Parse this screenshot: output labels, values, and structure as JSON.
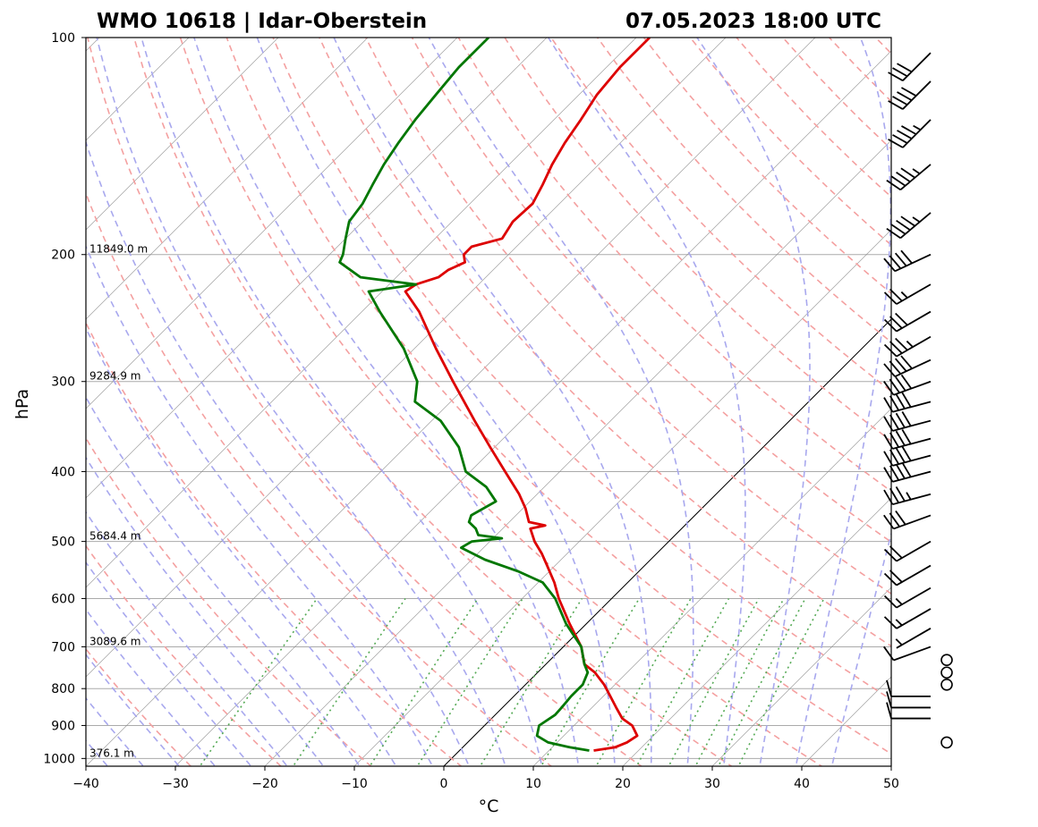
{
  "header": {
    "station": "WMO 10618 | Idar-Oberstein",
    "datetime": "07.05.2023 18:00 UTC"
  },
  "colors": {
    "temperature": "#dd0000",
    "dewpoint": "#007700",
    "dry_adiabats": "#f4a0a0",
    "moist_adiabats": "#a8a8ee",
    "mixing_ratio": "#55aa55",
    "isotherms": "#888888",
    "isobars": "#aaaaaa"
  },
  "chart_data": {
    "type": "line",
    "subtype": "skew-T log-P sounding",
    "xlabel": "°C",
    "ylabel": "hPa",
    "xlim": [
      -40,
      50
    ],
    "ylim": [
      1025,
      100
    ],
    "y_scale": "log",
    "x_ticks": [
      -40,
      -30,
      -20,
      -10,
      0,
      10,
      20,
      30,
      40,
      50
    ],
    "x_tick_labels": [
      "−40",
      "−30",
      "−20",
      "−10",
      "0",
      "10",
      "20",
      "30",
      "40",
      "50"
    ],
    "y_ticks": [
      1000,
      900,
      800,
      700,
      600,
      500,
      400,
      300,
      200,
      100
    ],
    "y_tick_labels": [
      "1000",
      "900",
      "800",
      "700",
      "600",
      "500",
      "400",
      "300",
      "200",
      "100"
    ],
    "grid": true,
    "height_labels": [
      {
        "p": 200,
        "label": "11849.0 m"
      },
      {
        "p": 300,
        "label": "9284.9 m"
      },
      {
        "p": 500,
        "label": "5684.4 m"
      },
      {
        "p": 700,
        "label": "3089.6 m"
      },
      {
        "p": 1000,
        "label": "376.1 m"
      }
    ],
    "series": [
      {
        "key": "temperature",
        "values": [
          {
            "p": 975,
            "t": 15.0
          },
          {
            "p": 965,
            "t": 17.0
          },
          {
            "p": 950,
            "t": 17.8
          },
          {
            "p": 930,
            "t": 18.2
          },
          {
            "p": 900,
            "t": 16.5
          },
          {
            "p": 880,
            "t": 14.6
          },
          {
            "p": 850,
            "t": 12.7
          },
          {
            "p": 820,
            "t": 10.8
          },
          {
            "p": 790,
            "t": 8.8
          },
          {
            "p": 760,
            "t": 6.4
          },
          {
            "p": 740,
            "t": 4.3
          },
          {
            "p": 700,
            "t": 2.0
          },
          {
            "p": 650,
            "t": -1.9
          },
          {
            "p": 600,
            "t": -5.9
          },
          {
            "p": 570,
            "t": -8.2
          },
          {
            "p": 540,
            "t": -10.9
          },
          {
            "p": 520,
            "t": -12.8
          },
          {
            "p": 500,
            "t": -15.0
          },
          {
            "p": 480,
            "t": -16.9
          },
          {
            "p": 475,
            "t": -15.6
          },
          {
            "p": 470,
            "t": -17.8
          },
          {
            "p": 450,
            "t": -19.7
          },
          {
            "p": 430,
            "t": -22.0
          },
          {
            "p": 400,
            "t": -26.1
          },
          {
            "p": 370,
            "t": -30.5
          },
          {
            "p": 340,
            "t": -35.2
          },
          {
            "p": 300,
            "t": -42.0
          },
          {
            "p": 270,
            "t": -47.6
          },
          {
            "p": 240,
            "t": -53.6
          },
          {
            "p": 225,
            "t": -57.4
          },
          {
            "p": 220,
            "t": -57.0
          },
          {
            "p": 215,
            "t": -55.3
          },
          {
            "p": 210,
            "t": -55.0
          },
          {
            "p": 205,
            "t": -54.0
          },
          {
            "p": 200,
            "t": -55.0
          },
          {
            "p": 195,
            "t": -55.0
          },
          {
            "p": 190,
            "t": -52.5
          },
          {
            "p": 180,
            "t": -53.2
          },
          {
            "p": 170,
            "t": -53.0
          },
          {
            "p": 160,
            "t": -54.0
          },
          {
            "p": 150,
            "t": -55.2
          },
          {
            "p": 140,
            "t": -56.2
          },
          {
            "p": 130,
            "t": -57.0
          },
          {
            "p": 120,
            "t": -58.0
          },
          {
            "p": 110,
            "t": -58.5
          },
          {
            "p": 100,
            "t": -58.5
          }
        ]
      },
      {
        "key": "dewpoint",
        "values": [
          {
            "p": 975,
            "t": 14.5
          },
          {
            "p": 965,
            "t": 12.0
          },
          {
            "p": 950,
            "t": 9.0
          },
          {
            "p": 930,
            "t": 7.0
          },
          {
            "p": 900,
            "t": 6.1
          },
          {
            "p": 870,
            "t": 6.7
          },
          {
            "p": 850,
            "t": 6.6
          },
          {
            "p": 820,
            "t": 6.4
          },
          {
            "p": 790,
            "t": 6.4
          },
          {
            "p": 760,
            "t": 5.6
          },
          {
            "p": 740,
            "t": 4.3
          },
          {
            "p": 700,
            "t": 2.0
          },
          {
            "p": 650,
            "t": -2.3
          },
          {
            "p": 600,
            "t": -6.3
          },
          {
            "p": 570,
            "t": -9.5
          },
          {
            "p": 550,
            "t": -13.5
          },
          {
            "p": 530,
            "t": -18.5
          },
          {
            "p": 510,
            "t": -22.5
          },
          {
            "p": 500,
            "t": -22.0
          },
          {
            "p": 495,
            "t": -19.0
          },
          {
            "p": 490,
            "t": -22.0
          },
          {
            "p": 480,
            "t": -23.0
          },
          {
            "p": 470,
            "t": -24.5
          },
          {
            "p": 460,
            "t": -25.0
          },
          {
            "p": 440,
            "t": -23.8
          },
          {
            "p": 420,
            "t": -26.5
          },
          {
            "p": 400,
            "t": -30.5
          },
          {
            "p": 370,
            "t": -34.0
          },
          {
            "p": 340,
            "t": -39.0
          },
          {
            "p": 320,
            "t": -44.0
          },
          {
            "p": 300,
            "t": -46.0
          },
          {
            "p": 270,
            "t": -51.2
          },
          {
            "p": 240,
            "t": -58.0
          },
          {
            "p": 225,
            "t": -61.5
          },
          {
            "p": 220,
            "t": -57.0
          },
          {
            "p": 215,
            "t": -64.0
          },
          {
            "p": 205,
            "t": -68.0
          },
          {
            "p": 200,
            "t": -68.5
          },
          {
            "p": 190,
            "t": -70.0
          },
          {
            "p": 180,
            "t": -71.5
          },
          {
            "p": 170,
            "t": -72.0
          },
          {
            "p": 160,
            "t": -73.0
          },
          {
            "p": 150,
            "t": -74.0
          },
          {
            "p": 140,
            "t": -74.8
          },
          {
            "p": 130,
            "t": -75.5
          },
          {
            "p": 120,
            "t": -76.0
          },
          {
            "p": 110,
            "t": -76.5
          },
          {
            "p": 100,
            "t": -76.5
          }
        ]
      }
    ]
  },
  "wind_barbs": [
    {
      "p": 950,
      "dir": 0,
      "speed_kt": 0
    },
    {
      "p": 880,
      "dir": 270,
      "speed_kt": 10
    },
    {
      "p": 850,
      "dir": 270,
      "speed_kt": 10
    },
    {
      "p": 820,
      "dir": 270,
      "speed_kt": 10
    },
    {
      "p": 790,
      "dir": 0,
      "speed_kt": 0
    },
    {
      "p": 760,
      "dir": 250,
      "speed_kt": 0
    },
    {
      "p": 730,
      "dir": 0,
      "speed_kt": 0
    },
    {
      "p": 700,
      "dir": 250,
      "speed_kt": 10
    },
    {
      "p": 660,
      "dir": 240,
      "speed_kt": 5
    },
    {
      "p": 620,
      "dir": 240,
      "speed_kt": 15
    },
    {
      "p": 580,
      "dir": 240,
      "speed_kt": 15
    },
    {
      "p": 540,
      "dir": 240,
      "speed_kt": 20
    },
    {
      "p": 500,
      "dir": 240,
      "speed_kt": 20
    },
    {
      "p": 460,
      "dir": 250,
      "speed_kt": 30
    },
    {
      "p": 430,
      "dir": 255,
      "speed_kt": 35
    },
    {
      "p": 400,
      "dir": 255,
      "speed_kt": 40
    },
    {
      "p": 380,
      "dir": 255,
      "speed_kt": 40
    },
    {
      "p": 360,
      "dir": 255,
      "speed_kt": 40
    },
    {
      "p": 340,
      "dir": 255,
      "speed_kt": 40
    },
    {
      "p": 320,
      "dir": 255,
      "speed_kt": 40
    },
    {
      "p": 300,
      "dir": 250,
      "speed_kt": 40
    },
    {
      "p": 280,
      "dir": 245,
      "speed_kt": 40
    },
    {
      "p": 260,
      "dir": 240,
      "speed_kt": 35
    },
    {
      "p": 240,
      "dir": 240,
      "speed_kt": 30
    },
    {
      "p": 220,
      "dir": 240,
      "speed_kt": 25
    },
    {
      "p": 200,
      "dir": 245,
      "speed_kt": 40
    },
    {
      "p": 175,
      "dir": 230,
      "speed_kt": 45
    },
    {
      "p": 150,
      "dir": 230,
      "speed_kt": 45
    },
    {
      "p": 130,
      "dir": 225,
      "speed_kt": 45
    },
    {
      "p": 115,
      "dir": 225,
      "speed_kt": 40
    },
    {
      "p": 105,
      "dir": 225,
      "speed_kt": 30
    }
  ]
}
